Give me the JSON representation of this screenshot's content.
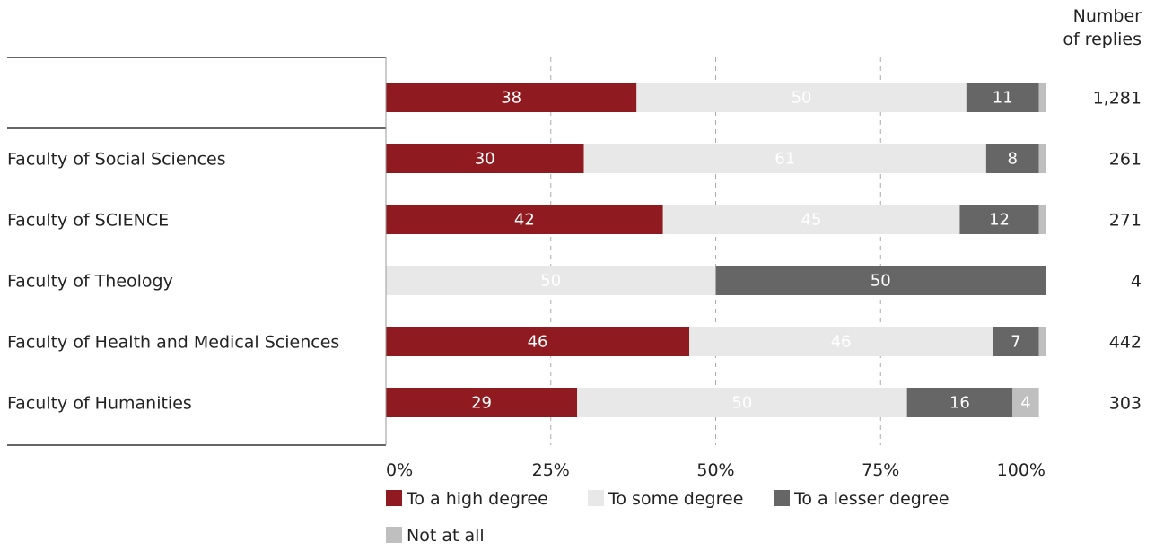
{
  "chart_data": {
    "type": "bar",
    "orientation": "horizontal",
    "stacked": true,
    "title": "",
    "replies_header": [
      "Number",
      "of replies"
    ],
    "categories": [
      "",
      "Faculty of Social Sciences",
      "Faculty of SCIENCE",
      "Faculty of Theology",
      "Faculty of Health and Medical Sciences",
      "Faculty of Humanities"
    ],
    "series": [
      {
        "name": "To a high degree",
        "color": "#8f1a1f",
        "label_color": "#ffffff",
        "values": [
          38,
          30,
          42,
          0,
          46,
          29
        ]
      },
      {
        "name": "To some degree",
        "color": "#e8e8e8",
        "label_color": "#ffffff",
        "values": [
          50,
          61,
          45,
          50,
          46,
          50
        ]
      },
      {
        "name": "To a lesser degree",
        "color": "#666666",
        "label_color": "#ffffff",
        "values": [
          11,
          8,
          12,
          50,
          7,
          16
        ]
      },
      {
        "name": "Not at all",
        "color": "#bfbfbf",
        "label_color": "#ffffff",
        "values": [
          1,
          1,
          1,
          0,
          1,
          4
        ]
      }
    ],
    "replies": [
      "1,281",
      "261",
      "271",
      "4",
      "442",
      "303"
    ],
    "x_ticks": [
      "0%",
      "25%",
      "50%",
      "75%",
      "100%"
    ],
    "xlim": [
      0,
      100
    ],
    "grid": "vertical-dashed",
    "legend_position": "bottom"
  }
}
